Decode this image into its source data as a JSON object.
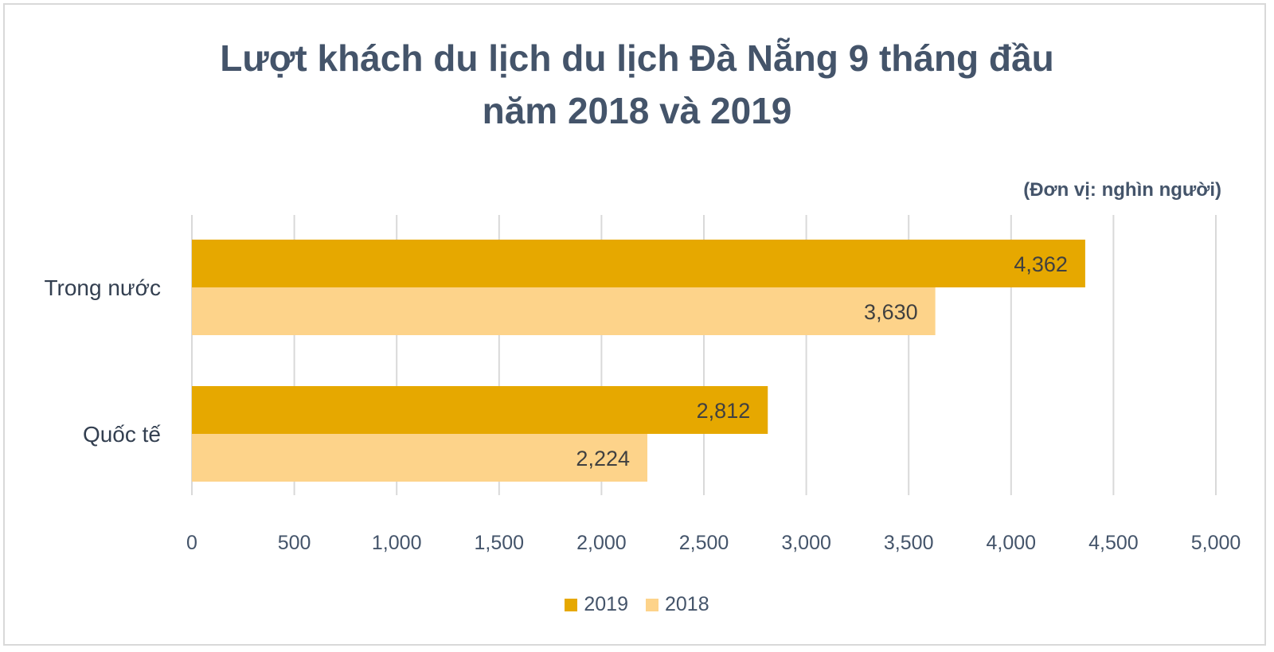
{
  "chart_data": {
    "type": "bar",
    "orientation": "horizontal",
    "title_lines": [
      "Lượt khách du lịch du lịch Đà Nẵng 9 tháng đầu",
      "năm 2018 và 2019"
    ],
    "unit_note": "(Đơn vị: nghìn người)",
    "categories": [
      "Trong nước",
      "Quốc tế"
    ],
    "series": [
      {
        "name": "2019",
        "values": [
          4362,
          2812
        ],
        "labels": [
          "4,362",
          "2,812"
        ],
        "color": "#e6a800"
      },
      {
        "name": "2018",
        "values": [
          3630,
          2224
        ],
        "labels": [
          "3,630",
          "2,224"
        ],
        "color": "#fdd38a"
      }
    ],
    "xlim": [
      0,
      5000
    ],
    "ticks": [
      0,
      500,
      1000,
      1500,
      2000,
      2500,
      3000,
      3500,
      4000,
      4500,
      5000
    ],
    "tick_labels": [
      "0",
      "500",
      "1,000",
      "1,500",
      "2,000",
      "2,500",
      "3,000",
      "3,500",
      "4,000",
      "4,500",
      "5,000"
    ],
    "grid": true,
    "legend_position": "bottom"
  }
}
